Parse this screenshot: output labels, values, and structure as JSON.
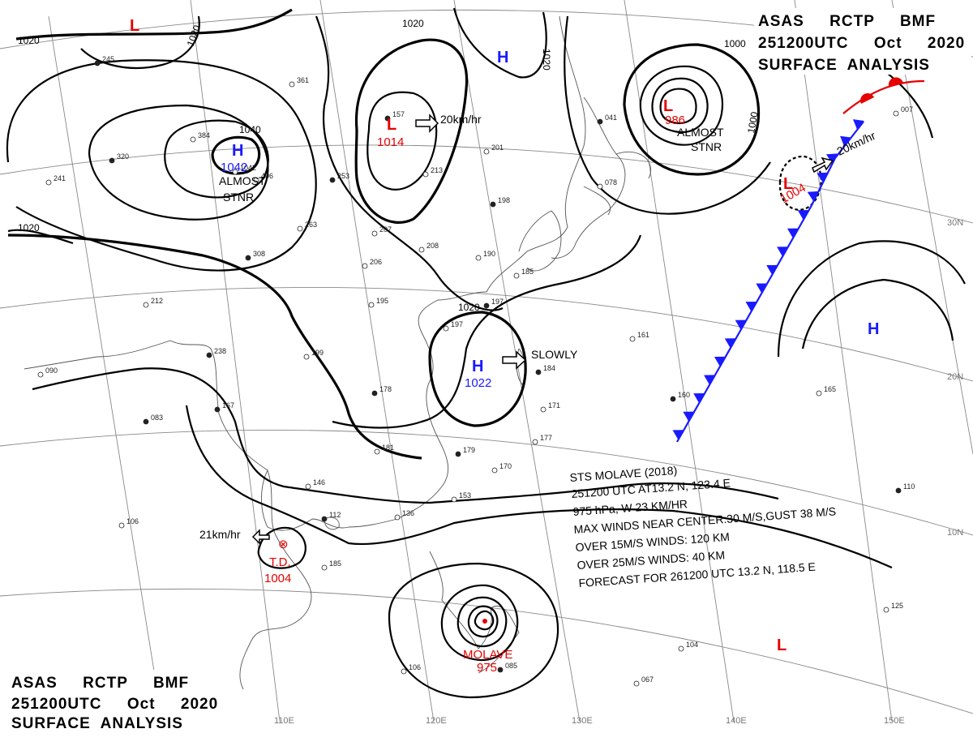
{
  "header": {
    "line1": "ASAS     RCTP     BMF",
    "line2": "251200UTC     Oct     2020",
    "line3": "SURFACE  ANALYSIS"
  },
  "footer": {
    "line1": "ASAS     RCTP     BMF",
    "line2": "251200UTC     Oct     2020",
    "line3": "SURFACE  ANALYSIS"
  },
  "grid_labels": {
    "lon": [
      "110E",
      "120E",
      "130E",
      "140E",
      "150E"
    ],
    "lat": [
      "30N",
      "20N",
      "10N"
    ]
  },
  "isobar_labels": [
    "1020",
    "1020",
    "1020",
    "1020",
    "1020",
    "1040",
    "1000",
    "1000",
    "1020"
  ],
  "pressure_centers": [
    {
      "id": "high-mongolia",
      "letter": "H",
      "value": "1042",
      "type": "high",
      "note": "ALMOST STNR"
    },
    {
      "id": "low-north",
      "letter": "L",
      "value": "1014",
      "type": "low",
      "motion": "20km/hr"
    },
    {
      "id": "high-north",
      "letter": "H",
      "value": "",
      "type": "high"
    },
    {
      "id": "low-japan-sea",
      "letter": "L",
      "value": "986",
      "type": "low",
      "note": "ALMOST STNR"
    },
    {
      "id": "low-pacific",
      "letter": "L",
      "value": "",
      "type": "low"
    },
    {
      "id": "low-frontal",
      "letter": "L",
      "value": "1004",
      "type": "low",
      "motion": "20km/hr"
    },
    {
      "id": "high-china",
      "letter": "H",
      "value": "1022",
      "type": "high",
      "motion": "SLOWLY"
    },
    {
      "id": "high-pacific",
      "letter": "H",
      "value": "",
      "type": "high"
    },
    {
      "id": "low-south",
      "letter": "L",
      "value": "",
      "type": "low"
    },
    {
      "id": "td",
      "letter": "T.D.",
      "value": "1004",
      "type": "td",
      "motion": "21km/hr"
    },
    {
      "id": "molave",
      "letter": "MOLAVE",
      "value": "975",
      "type": "ty"
    }
  ],
  "typhoon_info": {
    "line1": "STS  MOLAVE  (2018)",
    "line2": "251200 UTC  AT13.2 N, 123.4 E",
    "line3": "975 hPa, W  23 KM/HR",
    "line4": "MAX WINDS NEAR CENTER:30 M/S,GUST 38 M/S",
    "line5": "OVER 15M/S WINDS: 120 KM",
    "line6": "OVER 25M/S WINDS: 40 KM",
    "line7": "FORECAST FOR 261200 UTC 13.2 N, 118.5 E"
  },
  "colors": {
    "high": "#1a1aff",
    "low": "#e60000",
    "cold_front": "#1a1aff",
    "warm_front": "#e60000"
  },
  "station_plots": [
    "245",
    "361",
    "384",
    "320",
    "241",
    "406",
    "253",
    "263",
    "212",
    "238",
    "207",
    "206",
    "308",
    "195",
    "199",
    "178",
    "190",
    "185",
    "197",
    "213",
    "201",
    "198",
    "208",
    "197",
    "157",
    "1042",
    "146",
    "112",
    "136",
    "153",
    "179",
    "170",
    "177",
    "167",
    "181",
    "161",
    "160",
    "165",
    "171",
    "184",
    "185",
    "106",
    "085",
    "067",
    "104",
    "110",
    "125",
    "106",
    "083",
    "090",
    "078",
    "041",
    "007",
    "150"
  ]
}
